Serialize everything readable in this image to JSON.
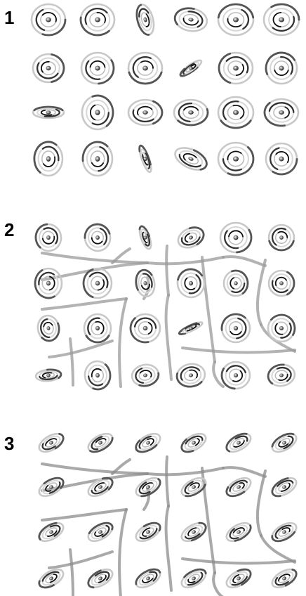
{
  "panels": [
    {
      "label": "1"
    },
    {
      "label": "2"
    },
    {
      "label": "3"
    }
  ]
}
